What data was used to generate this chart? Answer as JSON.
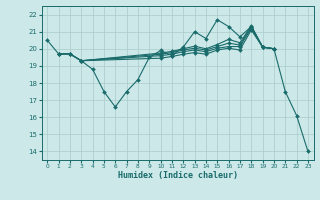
{
  "title": "",
  "xlabel": "Humidex (Indice chaleur)",
  "ylabel": "",
  "xlim": [
    -0.5,
    23.5
  ],
  "ylim": [
    13.5,
    22.5
  ],
  "yticks": [
    14,
    15,
    16,
    17,
    18,
    19,
    20,
    21,
    22
  ],
  "xticks": [
    0,
    1,
    2,
    3,
    4,
    5,
    6,
    7,
    8,
    9,
    10,
    11,
    12,
    13,
    14,
    15,
    16,
    17,
    18,
    19,
    20,
    21,
    22,
    23
  ],
  "bg_color": "#cce8e8",
  "grid_color": "#aacccc",
  "line_color": "#1a6b6b",
  "lines": [
    {
      "x": [
        0,
        1,
        2,
        3,
        4,
        5,
        6,
        7,
        8,
        9,
        10,
        11,
        12,
        13,
        14,
        15,
        16,
        17,
        18,
        19,
        20,
        21,
        22,
        23
      ],
      "y": [
        20.5,
        19.7,
        19.7,
        19.3,
        18.8,
        17.5,
        16.6,
        17.5,
        18.2,
        19.5,
        19.9,
        19.6,
        20.1,
        21.0,
        20.6,
        21.7,
        21.3,
        20.7,
        21.3,
        20.1,
        20.0,
        17.5,
        16.1,
        14.0
      ],
      "marker": "D",
      "markersize": 2.0
    },
    {
      "x": [
        1,
        2,
        3,
        10,
        11,
        12,
        13,
        14,
        15,
        16,
        17,
        18,
        19,
        20
      ],
      "y": [
        19.7,
        19.7,
        19.3,
        19.75,
        19.85,
        20.0,
        20.15,
        20.0,
        20.25,
        20.55,
        20.35,
        21.35,
        20.1,
        20.0
      ],
      "marker": "D",
      "markersize": 2.0
    },
    {
      "x": [
        1,
        2,
        3,
        10,
        11,
        12,
        13,
        14,
        15,
        16,
        17,
        18,
        19,
        20
      ],
      "y": [
        19.7,
        19.7,
        19.3,
        19.68,
        19.78,
        19.93,
        20.03,
        19.93,
        20.13,
        20.33,
        20.22,
        21.3,
        20.1,
        20.0
      ],
      "marker": "D",
      "markersize": 2.0
    },
    {
      "x": [
        1,
        2,
        3,
        10,
        11,
        12,
        13,
        14,
        15,
        16,
        17,
        18,
        19,
        20
      ],
      "y": [
        19.7,
        19.7,
        19.3,
        19.6,
        19.68,
        19.83,
        19.93,
        19.83,
        20.03,
        20.13,
        20.13,
        21.2,
        20.1,
        20.0
      ],
      "marker": "D",
      "markersize": 2.0
    },
    {
      "x": [
        3,
        10,
        11,
        12,
        13,
        14,
        15,
        16,
        17,
        18,
        19,
        20
      ],
      "y": [
        19.3,
        19.45,
        19.55,
        19.68,
        19.78,
        19.68,
        19.93,
        20.03,
        19.93,
        21.1,
        20.1,
        20.0
      ],
      "marker": "D",
      "markersize": 2.0
    }
  ]
}
